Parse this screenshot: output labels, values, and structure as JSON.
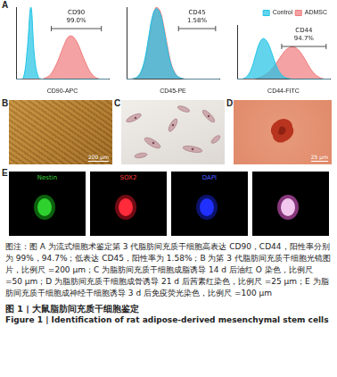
{
  "panel_labels": [
    "A",
    "B",
    "C",
    "D",
    "E"
  ],
  "chart_data": [
    {
      "type": "line",
      "x_label": "CD90-APC",
      "x": [
        0,
        4,
        8,
        12,
        16,
        20,
        24,
        28,
        32,
        36,
        40,
        44,
        48,
        52,
        56,
        60,
        64,
        68,
        72,
        76,
        80,
        84,
        88,
        92,
        96,
        100
      ],
      "series": [
        {
          "color": "#1fc3e6",
          "values": [
            0,
            0,
            2,
            40,
            100,
            30,
            3,
            0,
            0,
            0,
            0,
            0,
            0,
            0,
            0,
            0,
            0,
            0,
            0,
            0,
            0,
            0,
            0,
            0,
            0,
            0
          ]
        },
        {
          "color": "#f07a7c",
          "values": [
            0,
            0,
            0,
            0,
            0,
            0,
            0,
            0,
            2,
            5,
            12,
            22,
            35,
            48,
            58,
            60,
            55,
            45,
            32,
            20,
            10,
            4,
            1,
            0,
            0,
            0
          ]
        }
      ],
      "xlim": [
        0,
        100
      ],
      "ylim": [
        0,
        100
      ],
      "tick_labels": false,
      "grid": false,
      "gate": [
        38,
        92
      ],
      "gate_label": [
        "CD90",
        "99.0%"
      ]
    },
    {
      "type": "line",
      "x_label": "CD45-PE",
      "x": [
        0,
        4,
        8,
        12,
        16,
        20,
        24,
        28,
        32,
        36,
        40,
        44,
        48,
        52,
        56,
        60,
        64,
        68,
        72,
        76,
        80,
        84,
        88,
        92,
        96,
        100
      ],
      "series": [
        {
          "color": "#1fc3e6",
          "values": [
            0,
            0,
            1,
            4,
            12,
            30,
            60,
            88,
            98,
            92,
            70,
            42,
            20,
            8,
            3,
            1,
            0,
            0,
            0,
            0,
            0,
            0,
            0,
            0,
            0,
            0
          ]
        },
        {
          "color": "#f07a7c",
          "values": [
            0,
            0,
            1,
            3,
            10,
            26,
            55,
            85,
            100,
            95,
            74,
            46,
            22,
            9,
            3,
            1,
            0,
            0,
            0,
            0,
            0,
            0,
            0,
            0,
            0,
            0
          ]
        }
      ],
      "xlim": [
        0,
        100
      ],
      "ylim": [
        0,
        100
      ],
      "tick_labels": false,
      "grid": false,
      "gate": [
        56,
        96
      ],
      "gate_label": [
        "CD45",
        "1.58%"
      ]
    },
    {
      "type": "line",
      "x_label": "CD44-FITC",
      "legend": "top right",
      "x": [
        0,
        4,
        8,
        12,
        16,
        20,
        24,
        28,
        32,
        36,
        40,
        44,
        48,
        52,
        56,
        60,
        64,
        68,
        72,
        76,
        80,
        84,
        88,
        92,
        96,
        100
      ],
      "series": [
        {
          "name": "Control",
          "color": "#1fc3e6",
          "values": [
            0,
            0,
            2,
            8,
            22,
            45,
            66,
            75,
            70,
            55,
            35,
            18,
            8,
            3,
            1,
            0,
            0,
            0,
            0,
            0,
            0,
            0,
            0,
            0,
            0,
            0
          ]
        },
        {
          "name": "ADMSC",
          "color": "#f07a7c",
          "values": [
            0,
            0,
            0,
            0,
            0,
            1,
            3,
            6,
            10,
            16,
            24,
            34,
            44,
            53,
            58,
            60,
            57,
            50,
            40,
            28,
            17,
            9,
            4,
            1,
            0,
            0
          ]
        }
      ],
      "xlim": [
        0,
        100
      ],
      "ylim": [
        0,
        100
      ],
      "tick_labels": false,
      "grid": false,
      "gate": [
        48,
        96
      ],
      "gate_label": [
        "CD44",
        "94.7%"
      ]
    }
  ],
  "images": {
    "B": {
      "scale_bar": "200 μm"
    },
    "D": {
      "scale_bar": "25 μm"
    },
    "E": {
      "labels": [
        {
          "text": "Nestin",
          "color": "#3ccf3c"
        },
        {
          "text": "SOX2",
          "color": "#ff3b3b"
        },
        {
          "text": "DAPI",
          "color": "#4a5cff"
        }
      ]
    }
  },
  "caption": {
    "note": "图注：图 A 为流式细胞术鉴定第 3 代脂肪间充质干细胞高表达 CD90，CD44，阳性率分别为 99%，94.7%；低表达 CD45，阳性率为 1.58%；B 为第 3 代脂肪间充质干细胞光镜图片，比例尺 =200 μm；C 为脂肪间充质干细胞成脂诱导 14 d 后油红 O 染色，比例尺 =50 μm；D 为脂肪间充质干细胞成骨诱导 21 d 后茜素红染色，比例尺 =25 μm；E 为脂肪间充质干细胞成神经干细胞诱导 3 d 后免疫荧光染色，比例尺 =100 μm",
    "title_zh": "图 1 | 大鼠脂肪间充质干细胞鉴定",
    "title_en": "Figure 1 | Identification of rat adipose-derived mesenchymal stem cells"
  }
}
